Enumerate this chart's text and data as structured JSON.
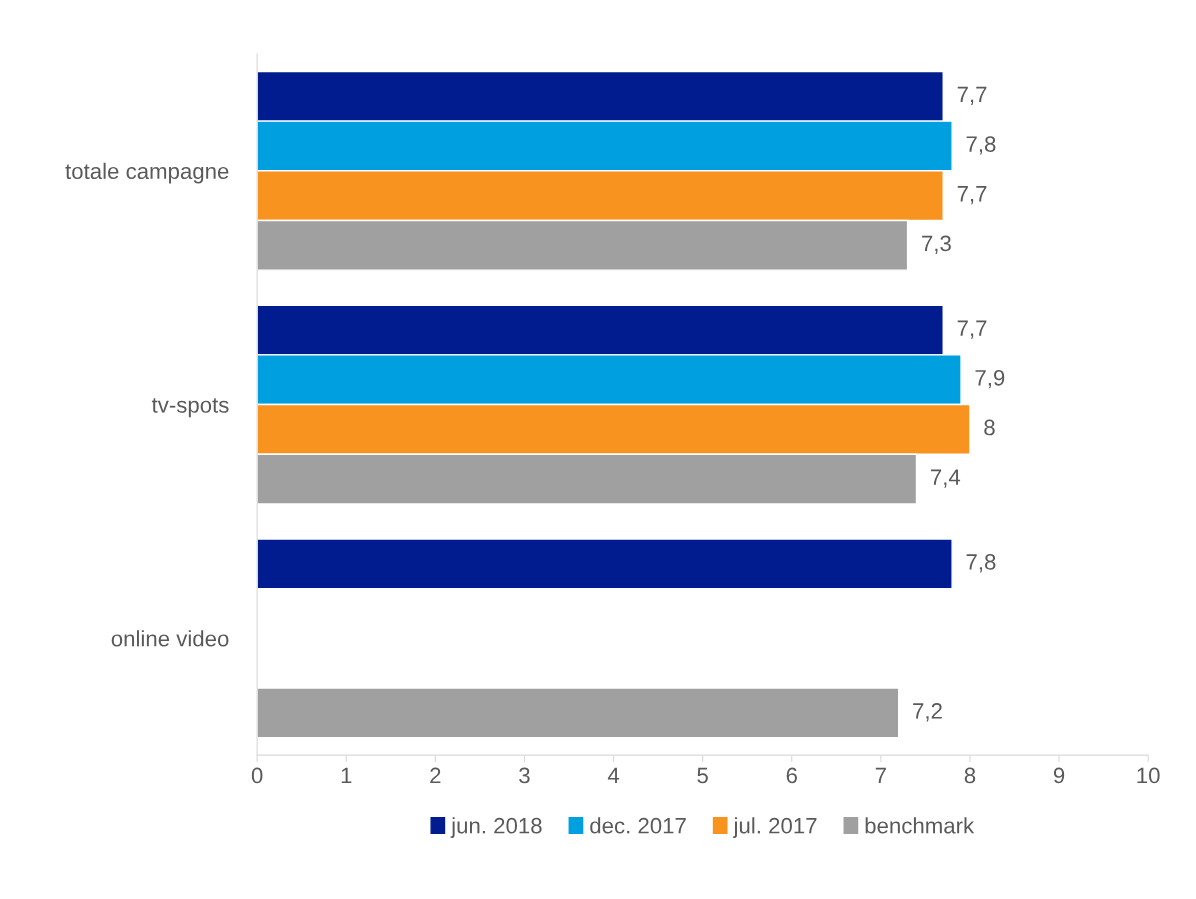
{
  "chart_data": {
    "type": "bar",
    "orientation": "horizontal",
    "categories": [
      "totale campagne",
      "tv-spots",
      "online video"
    ],
    "series": [
      {
        "name": "jun. 2018",
        "color": "#001c8e",
        "values": [
          7.7,
          7.7,
          7.8
        ],
        "value_labels": [
          "7,7",
          "7,7",
          "7,8"
        ]
      },
      {
        "name": "dec. 2017",
        "color": "#00a0e0",
        "values": [
          7.8,
          7.9,
          null
        ],
        "value_labels": [
          "7,8",
          "7,9",
          null
        ]
      },
      {
        "name": "jul. 2017",
        "color": "#f7931e",
        "values": [
          7.7,
          8,
          null
        ],
        "value_labels": [
          "7,7",
          "8",
          null
        ]
      },
      {
        "name": "benchmark",
        "color": "#a0a0a0",
        "values": [
          7.3,
          7.4,
          7.2
        ],
        "value_labels": [
          "7,3",
          "7,4",
          "7,2"
        ]
      }
    ],
    "xlim": [
      0,
      10
    ],
    "xticks": [
      0,
      1,
      2,
      3,
      4,
      5,
      6,
      7,
      8,
      9,
      10
    ],
    "grid": false,
    "legend": "bottom"
  }
}
